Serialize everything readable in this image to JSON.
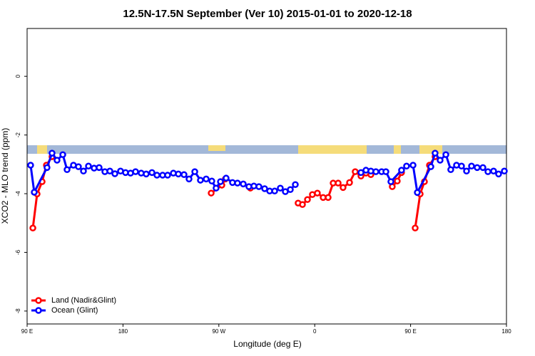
{
  "chart_data": {
    "type": "line",
    "title": "12.5N-17.5N September (Ver 10)   2015-01-01 to 2020-12-18",
    "x_label": "Longitude (deg E)",
    "y_label": "XCO2 - MLO trend (ppm)",
    "xlim": [
      90,
      540
    ],
    "ylim": [
      -8.44,
      1.63
    ],
    "xticks": [
      {
        "value": 90,
        "label": "90 E"
      },
      {
        "value": 180,
        "label": "180"
      },
      {
        "value": 270,
        "label": "90 W"
      },
      {
        "value": 360,
        "label": "0"
      },
      {
        "value": 450,
        "label": "90 E"
      },
      {
        "value": 540,
        "label": "180"
      }
    ],
    "yticks": [
      0,
      -2,
      -4,
      -6,
      -8
    ],
    "legend": "bottom-left",
    "series": [
      {
        "name": "Land (Nadir&Glint)",
        "color": "#ff0000",
        "x": [
          95.4,
          99.4,
          104.1,
          108.1,
          113.4,
          null,
          262.8,
          272.8,
          276.1,
          null,
          299.6,
          null,
          344.4,
          348.5,
          353.2,
          357.8,
          362.5,
          367.9,
          372.6,
          377.3,
          382.0,
          386.6,
          392.7,
          398.0,
          403.4,
          408.1,
          412.7,
          null,
          432.8,
          437.5,
          441.5,
          null,
          454.3,
          459.0,
          463.0,
          467.7,
          473.0
        ],
        "values": [
          -5.17,
          -4.01,
          -3.59,
          -3.03,
          -2.74,
          null,
          -3.98,
          -3.71,
          -3.5,
          null,
          -3.81,
          null,
          -4.32,
          -4.37,
          -4.2,
          -4.03,
          -3.98,
          -4.13,
          -4.13,
          -3.64,
          -3.64,
          -3.79,
          -3.62,
          -3.25,
          -3.4,
          -3.3,
          -3.35,
          null,
          -3.76,
          -3.57,
          -3.28,
          null,
          -5.17,
          -4.01,
          -3.59,
          -3.03,
          -2.74
        ]
      },
      {
        "name": "Ocean (Glint)",
        "color": "#0000ff",
        "x": [
          93.3,
          96.7,
          108.7,
          113.4,
          118.1,
          123.5,
          127.5,
          133.5,
          138.2,
          142.9,
          147.6,
          152.9,
          157.6,
          163.0,
          167.7,
          172.4,
          177.7,
          182.4,
          187.1,
          191.8,
          197.1,
          201.8,
          207.2,
          211.9,
          217.2,
          221.9,
          227.3,
          232.0,
          237.3,
          242.0,
          247.4,
          252.7,
          258.1,
          263.4,
          267.4,
          271.5,
          276.8,
          282.8,
          287.5,
          292.9,
          298.2,
          302.9,
          307.6,
          313.0,
          317.7,
          322.4,
          327.7,
          332.4,
          337.1,
          341.8,
          null,
          403.4,
          408.1,
          412.7,
          417.4,
          422.8,
          426.8,
          431.5,
          441.5,
          446.2,
          452.3,
          456.3,
          469.0,
          473.0,
          477.7,
          483.1,
          487.7,
          493.1,
          497.8,
          502.5,
          507.2,
          512.5,
          517.9,
          522.6,
          527.9,
          532.6,
          538.0
        ],
        "values": [
          -3.03,
          -3.95,
          -3.11,
          -2.62,
          -2.86,
          -2.67,
          -3.18,
          -3.03,
          -3.08,
          -3.23,
          -3.06,
          -3.13,
          -3.11,
          -3.25,
          -3.23,
          -3.32,
          -3.23,
          -3.28,
          -3.3,
          -3.25,
          -3.3,
          -3.33,
          -3.28,
          -3.37,
          -3.37,
          -3.37,
          -3.3,
          -3.33,
          -3.35,
          -3.5,
          -3.25,
          -3.54,
          -3.5,
          -3.57,
          -3.81,
          -3.59,
          -3.47,
          -3.62,
          -3.64,
          -3.67,
          -3.76,
          -3.74,
          -3.76,
          -3.83,
          -3.91,
          -3.91,
          -3.81,
          -3.93,
          -3.86,
          -3.69,
          null,
          -3.28,
          -3.2,
          -3.23,
          -3.25,
          -3.25,
          -3.25,
          -3.59,
          -3.2,
          -3.06,
          -3.03,
          -3.96,
          -3.08,
          -2.62,
          -2.86,
          -2.67,
          -3.18,
          -3.03,
          -3.06,
          -3.23,
          -3.06,
          -3.11,
          -3.11,
          -3.25,
          -3.23,
          -3.33,
          -3.23
        ]
      }
    ]
  }
}
